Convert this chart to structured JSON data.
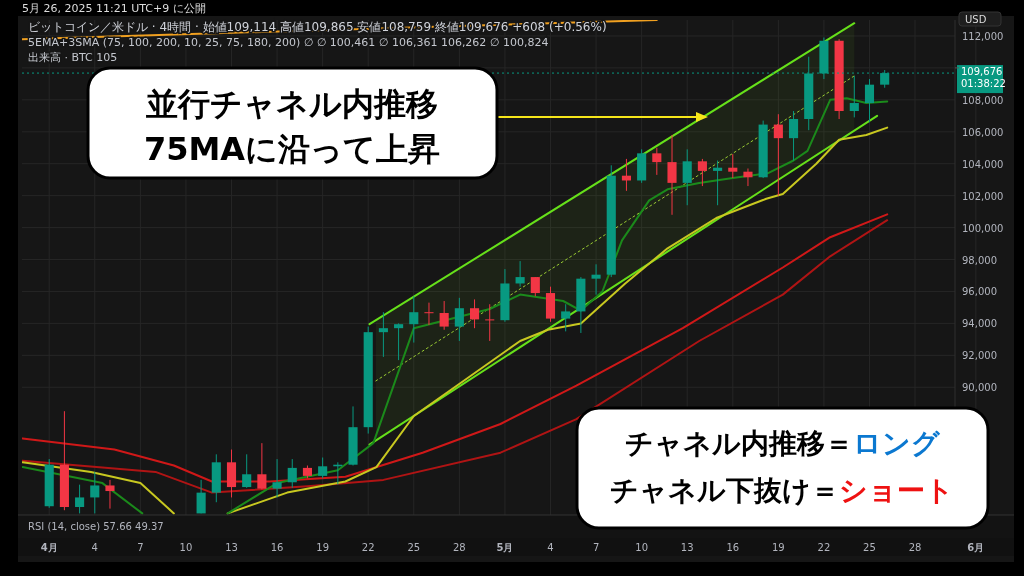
{
  "chart_data": {
    "type": "candlestick",
    "title": "5月 26, 2025 11:21 UTC+9 に公開",
    "subtitle": "ビットコイン／米ドル · 4時間 · 始値109,114 高値109,865 安値108,759 終値109,676 +608 (+0.56%)",
    "ylabel": "USD",
    "x": [
      "2025-04-01",
      "2025-04-02",
      "2025-04-03",
      "2025-04-04",
      "2025-04-05",
      "2025-04-11",
      "2025-04-12",
      "2025-04-13",
      "2025-04-14",
      "2025-04-15",
      "2025-04-16",
      "2025-04-17",
      "2025-04-18",
      "2025-04-19",
      "2025-04-20",
      "2025-04-21",
      "2025-04-22",
      "2025-04-23",
      "2025-04-24",
      "2025-04-25",
      "2025-04-26",
      "2025-04-27",
      "2025-04-28",
      "2025-04-29",
      "2025-04-30",
      "2025-05-01",
      "2025-05-02",
      "2025-05-03",
      "2025-05-04",
      "2025-05-05",
      "2025-05-06",
      "2025-05-07",
      "2025-05-08",
      "2025-05-09",
      "2025-05-10",
      "2025-05-11",
      "2025-05-12",
      "2025-05-13",
      "2025-05-14",
      "2025-05-15",
      "2025-05-16",
      "2025-05-17",
      "2025-05-18",
      "2025-05-19",
      "2025-05-20",
      "2025-05-21",
      "2025-05-22",
      "2025-05-23",
      "2025-05-24",
      "2025-05-25",
      "2025-05-26"
    ],
    "ohlc": [
      [
        82550,
        85500,
        82450,
        85150
      ],
      [
        85150,
        88500,
        82300,
        82500
      ],
      [
        82500,
        83900,
        82100,
        83100
      ],
      [
        83100,
        84700,
        82100,
        83850
      ],
      [
        83850,
        84200,
        82400,
        83500
      ],
      [
        82100,
        84200,
        82100,
        83400
      ],
      [
        83400,
        85800,
        82800,
        85300
      ],
      [
        85300,
        86100,
        83100,
        83750
      ],
      [
        83750,
        85800,
        83700,
        84550
      ],
      [
        84550,
        86500,
        83600,
        83650
      ],
      [
        83650,
        85500,
        83100,
        84050
      ],
      [
        84050,
        85500,
        83700,
        84950
      ],
      [
        84950,
        85100,
        84300,
        84450
      ],
      [
        84450,
        85600,
        84300,
        85050
      ],
      [
        85050,
        85300,
        83900,
        85150
      ],
      [
        85150,
        88800,
        85100,
        87500
      ],
      [
        87500,
        93800,
        87100,
        93450
      ],
      [
        93450,
        94700,
        91900,
        93700
      ],
      [
        93700,
        94000,
        91700,
        93950
      ],
      [
        93950,
        95700,
        92800,
        94700
      ],
      [
        94700,
        95300,
        93900,
        94650
      ],
      [
        94650,
        95400,
        93600,
        93800
      ],
      [
        93800,
        95600,
        92900,
        94950
      ],
      [
        94950,
        95500,
        93700,
        94250
      ],
      [
        94250,
        95200,
        92900,
        94200
      ],
      [
        94200,
        97400,
        94100,
        96500
      ],
      [
        96500,
        97900,
        96300,
        96900
      ],
      [
        96900,
        96900,
        95700,
        95900
      ],
      [
        95900,
        96300,
        94100,
        94300
      ],
      [
        94300,
        95200,
        93500,
        94750
      ],
      [
        94750,
        96900,
        93400,
        96800
      ],
      [
        96800,
        97700,
        95800,
        97050
      ],
      [
        97050,
        103900,
        96900,
        103250
      ],
      [
        103250,
        104300,
        102300,
        102950
      ],
      [
        102950,
        104900,
        102800,
        104650
      ],
      [
        104650,
        105000,
        103300,
        104100
      ],
      [
        104100,
        105800,
        100800,
        102800
      ],
      [
        102800,
        104900,
        101400,
        104150
      ],
      [
        104150,
        104300,
        102600,
        103550
      ],
      [
        103550,
        104200,
        101400,
        103750
      ],
      [
        103750,
        104600,
        103100,
        103500
      ],
      [
        103500,
        103700,
        102600,
        103150
      ],
      [
        103150,
        106700,
        103100,
        106450
      ],
      [
        106450,
        107100,
        102000,
        105600
      ],
      [
        105600,
        107300,
        104200,
        106800
      ],
      [
        106800,
        110700,
        106100,
        109650
      ],
      [
        109650,
        111900,
        109300,
        111700
      ],
      [
        111700,
        111800,
        106800,
        107300
      ],
      [
        107300,
        109500,
        106900,
        107800
      ],
      [
        107800,
        109300,
        106600,
        108950
      ],
      [
        108950,
        109865,
        108759,
        109676
      ]
    ],
    "series": [
      {
        "type": "line",
        "color": "#f0a020",
        "x": [
          "2025-03-30T05:00",
          "2025-05-11T00:00"
        ],
        "values": [
          111800,
          113000
        ]
      },
      {
        "type": "line",
        "color": "#b01414",
        "x": [
          "2025-03-30T06:00",
          "2025-04-08T00:00",
          "2025-04-11T17:00",
          "2025-04-18T00:00",
          "2025-04-23T00:00",
          "2025-04-30T17:00",
          "2025-05-05T17:00",
          "2025-05-13T19:00",
          "2025-05-19T07:00",
          "2025-05-22T10:00",
          "2025-05-26T04:00"
        ],
        "values": [
          85400,
          84700,
          83400,
          83800,
          84200,
          85900,
          88000,
          92900,
          95800,
          98200,
          100461
        ]
      },
      {
        "type": "line",
        "color": "#d01818",
        "x": [
          "2025-03-30T06:00",
          "2025-04-05T07:00",
          "2025-04-09T05:00",
          "2025-04-11T17:00",
          "2025-04-15T12:00",
          "2025-04-20T12:00",
          "2025-04-25T14:00",
          "2025-04-30T17:00",
          "2025-05-05T17:00",
          "2025-05-12T17:00",
          "2025-05-19T07:00",
          "2025-05-22T10:00",
          "2025-05-26T04:00"
        ],
        "values": [
          86800,
          86100,
          85100,
          84100,
          84100,
          84400,
          85900,
          87700,
          90100,
          93700,
          97500,
          99400,
          100824
        ]
      },
      {
        "type": "line",
        "color": "#9acd32",
        "line_style": "dotted",
        "x": [
          "2025-04-22T12:00",
          "2025-05-24T00:00"
        ],
        "values": [
          90400,
          109500
        ],
        "lower": [
          86600,
          106100
        ],
        "upper": [
          94200,
          112800
        ]
      },
      {
        "type": "line",
        "color": "#66e01a",
        "x": [
          "2025-04-22T02:00",
          "2025-05-24T00:00"
        ],
        "values": [
          93950,
          112800
        ]
      },
      {
        "type": "line",
        "color": "#66e01a",
        "x": [
          "2025-04-22T02:00",
          "2025-05-25T12:00"
        ],
        "values": [
          86400,
          107000
        ]
      },
      {
        "type": "line",
        "color": "#c8c820",
        "x": [
          "2025-03-30T06:00",
          "2025-04-03T18:00",
          "2025-04-07T00:00",
          "2025-04-09T05:00",
          "2025-04-11T00:00",
          "2025-04-12T18:00",
          "2025-04-16T16:00",
          "2025-04-20T12:00",
          "2025-04-22T13:00",
          "2025-04-25T00:00",
          "2025-05-02T00:00",
          "2025-05-03T20:00",
          "2025-05-06T00:00",
          "2025-05-08T22:00",
          "2025-05-11T17:00",
          "2025-05-14T22:00",
          "2025-05-18T05:00",
          "2025-05-19T07:00",
          "2025-05-21T12:00",
          "2025-05-23T00:00",
          "2025-05-24T19:00",
          "2025-05-26T04:00"
        ],
        "values": [
          85300,
          84700,
          84000,
          82100,
          null,
          82100,
          83400,
          84100,
          85000,
          88200,
          92900,
          93600,
          94000,
          96500,
          98700,
          100600,
          101800,
          102100,
          104000,
          105500,
          105800,
          106262
        ]
      },
      {
        "type": "line",
        "color": "#1b8a1b",
        "x": [
          "2025-03-30T06:00",
          "2025-04-04T12:00",
          "2025-04-07T03:00",
          "2025-04-10T00:00",
          "2025-04-12T18:00",
          "2025-04-16T00:00",
          "2025-04-20T00:00",
          "2025-04-22T08:00",
          "2025-04-25T00:00",
          "2025-04-30T00:00",
          "2025-05-02T00:00",
          "2025-05-04T20:00",
          "2025-05-06T00:00",
          "2025-05-07T10:00",
          "2025-05-08T17:00",
          "2025-05-10T12:00",
          "2025-05-11T17:00",
          "2025-05-13T19:00",
          "2025-05-16T00:00",
          "2025-05-18T07:00",
          "2025-05-20T00:00",
          "2025-05-20T22:00",
          "2025-05-21T17:00",
          "2025-05-22T10:00",
          "2025-05-23T12:00",
          "2025-05-24T19:00",
          "2025-05-26T04:00"
        ],
        "values": [
          85000,
          84000,
          82100,
          null,
          82100,
          84000,
          84800,
          86500,
          93700,
          94900,
          95800,
          95400,
          94800,
          96000,
          99200,
          101700,
          102400,
          102800,
          103100,
          103400,
          104200,
          104800,
          106500,
          108000,
          108100,
          107800,
          107900
        ]
      }
    ],
    "xlim": [
      "2025-03-30T05:00",
      "2025-06-03T06:00"
    ],
    "ylim": [
      82000,
      113000
    ],
    "xticks": [
      {
        "value": "2025-04-01",
        "label": "4月"
      },
      {
        "value": "2025-04-04",
        "label": "4"
      },
      {
        "value": "2025-04-07",
        "label": "7"
      },
      {
        "value": "2025-04-10",
        "label": "10"
      },
      {
        "value": "2025-04-13",
        "label": "13"
      },
      {
        "value": "2025-04-16",
        "label": "16"
      },
      {
        "value": "2025-04-19",
        "label": "19"
      },
      {
        "value": "2025-04-22",
        "label": "22"
      },
      {
        "value": "2025-04-25",
        "label": "25"
      },
      {
        "value": "2025-04-28",
        "label": "28"
      },
      {
        "value": "2025-05-01",
        "label": "5月"
      },
      {
        "value": "2025-05-04",
        "label": "4"
      },
      {
        "value": "2025-05-07",
        "label": "7"
      },
      {
        "value": "2025-05-10",
        "label": "10"
      },
      {
        "value": "2025-05-13",
        "label": "13"
      },
      {
        "value": "2025-05-16",
        "label": "16"
      },
      {
        "value": "2025-05-19",
        "label": "19"
      },
      {
        "value": "2025-05-22",
        "label": "22"
      },
      {
        "value": "2025-05-25",
        "label": "25"
      },
      {
        "value": "2025-05-28",
        "label": "28"
      },
      {
        "value": "2025-06-01",
        "label": "6月"
      }
    ],
    "yticks": [
      {
        "value": 90000,
        "label": "90,000"
      },
      {
        "value": 92000,
        "label": "92,000"
      },
      {
        "value": 94000,
        "label": "94,000"
      },
      {
        "value": 96000,
        "label": "96,000"
      },
      {
        "value": 98000,
        "label": "98,000"
      },
      {
        "value": 100000,
        "label": "100,000"
      },
      {
        "value": 102000,
        "label": "102,000"
      },
      {
        "value": 104000,
        "label": "104,000"
      },
      {
        "value": 106000,
        "label": "106,000"
      },
      {
        "value": 108000,
        "label": "108,000"
      },
      {
        "value": 110000,
        "label": null
      },
      {
        "value": 112000,
        "label": "112,000"
      }
    ],
    "grid": true,
    "ref_lines": [
      {
        "axis": "y",
        "value": 109676,
        "label": "109,676\n01:38:22",
        "color": "#089981",
        "line_style": "dotted"
      }
    ],
    "annotations": [
      "5EMA+3SMA (75, 100, 200, 10, 25, 75, 180, 200) ∅ ∅ 100,461 ∅ 106,361 106,262 ∅ 100,824",
      "出来高 · BTC 105",
      "RSI (14, close) 57.66 49.37",
      "並行チャネル内推移",
      "75MAに沿って上昇",
      "チャネル内推移＝",
      "ロング",
      "チャネル下抜け＝",
      "ショート"
    ]
  }
}
